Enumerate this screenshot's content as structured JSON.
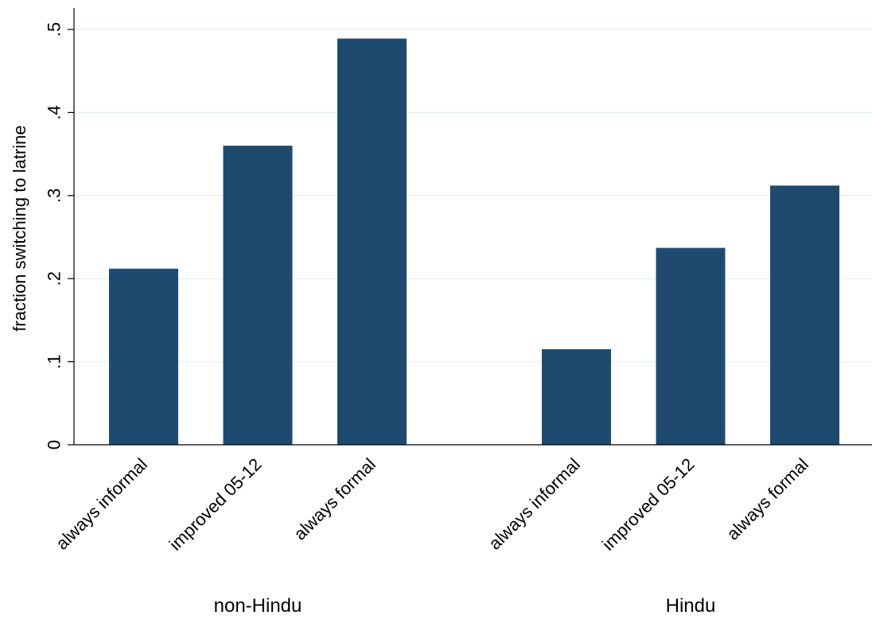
{
  "chart_data": {
    "type": "bar",
    "ylabel": "fraction switching to latrine",
    "ylim": [
      0,
      0.525
    ],
    "yticks": [
      0,
      0.1,
      0.2,
      0.3,
      0.4,
      0.5
    ],
    "ytick_labels": [
      "0",
      ".1",
      ".2",
      ".3",
      ".4",
      ".5"
    ],
    "grid": true,
    "bar_color": "#1f4a70",
    "groups": [
      {
        "name": "non-Hindu",
        "categories": [
          "always informal",
          "improved 05-12",
          "always formal"
        ],
        "values": [
          0.212,
          0.36,
          0.489
        ]
      },
      {
        "name": "Hindu",
        "categories": [
          "always informal",
          "improved 05-12",
          "always formal"
        ],
        "values": [
          0.115,
          0.237,
          0.312
        ]
      }
    ]
  }
}
